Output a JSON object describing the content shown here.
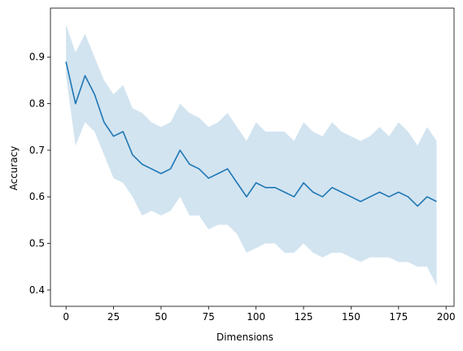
{
  "chart_data": {
    "type": "line",
    "title": "",
    "xlabel": "Dimensions",
    "ylabel": "Accuracy",
    "xlim": [
      -8.2,
      204.2
    ],
    "ylim": [
      0.365,
      1.005
    ],
    "xticks": [
      0,
      25,
      50,
      75,
      100,
      125,
      150,
      175,
      200
    ],
    "yticks": [
      0.4,
      0.5,
      0.6,
      0.7,
      0.8,
      0.9
    ],
    "grid": false,
    "legend": "none",
    "colors": {
      "line": "#1f77b4",
      "band": "#1f77b4",
      "band_opacity": 0.2
    },
    "series": [
      {
        "x": [
          0,
          5,
          10,
          15,
          20,
          25,
          30,
          35,
          40,
          45,
          50,
          55,
          60,
          65,
          70,
          75,
          80,
          85,
          90,
          95,
          100,
          105,
          110,
          115,
          120,
          125,
          130,
          135,
          140,
          145,
          150,
          155,
          160,
          165,
          170,
          175,
          180,
          185,
          190,
          195
        ],
        "y": [
          0.89,
          0.8,
          0.86,
          0.82,
          0.76,
          0.73,
          0.74,
          0.69,
          0.67,
          0.66,
          0.65,
          0.66,
          0.7,
          0.67,
          0.66,
          0.64,
          0.65,
          0.66,
          0.63,
          0.6,
          0.63,
          0.62,
          0.62,
          0.61,
          0.6,
          0.63,
          0.61,
          0.6,
          0.62,
          0.61,
          0.6,
          0.59,
          0.6,
          0.61,
          0.6,
          0.61,
          0.6,
          0.58,
          0.6,
          0.59
        ],
        "lower": [
          0.86,
          0.71,
          0.76,
          0.74,
          0.69,
          0.64,
          0.63,
          0.6,
          0.56,
          0.57,
          0.56,
          0.57,
          0.6,
          0.56,
          0.56,
          0.53,
          0.54,
          0.54,
          0.52,
          0.48,
          0.49,
          0.5,
          0.5,
          0.48,
          0.48,
          0.5,
          0.48,
          0.47,
          0.48,
          0.48,
          0.47,
          0.46,
          0.47,
          0.47,
          0.47,
          0.46,
          0.46,
          0.45,
          0.45,
          0.41
        ],
        "upper": [
          0.97,
          0.91,
          0.95,
          0.9,
          0.85,
          0.82,
          0.84,
          0.79,
          0.78,
          0.76,
          0.75,
          0.76,
          0.8,
          0.78,
          0.77,
          0.75,
          0.76,
          0.78,
          0.75,
          0.72,
          0.76,
          0.74,
          0.74,
          0.74,
          0.72,
          0.76,
          0.74,
          0.73,
          0.76,
          0.74,
          0.73,
          0.72,
          0.73,
          0.75,
          0.73,
          0.76,
          0.74,
          0.71,
          0.75,
          0.72
        ]
      }
    ]
  }
}
